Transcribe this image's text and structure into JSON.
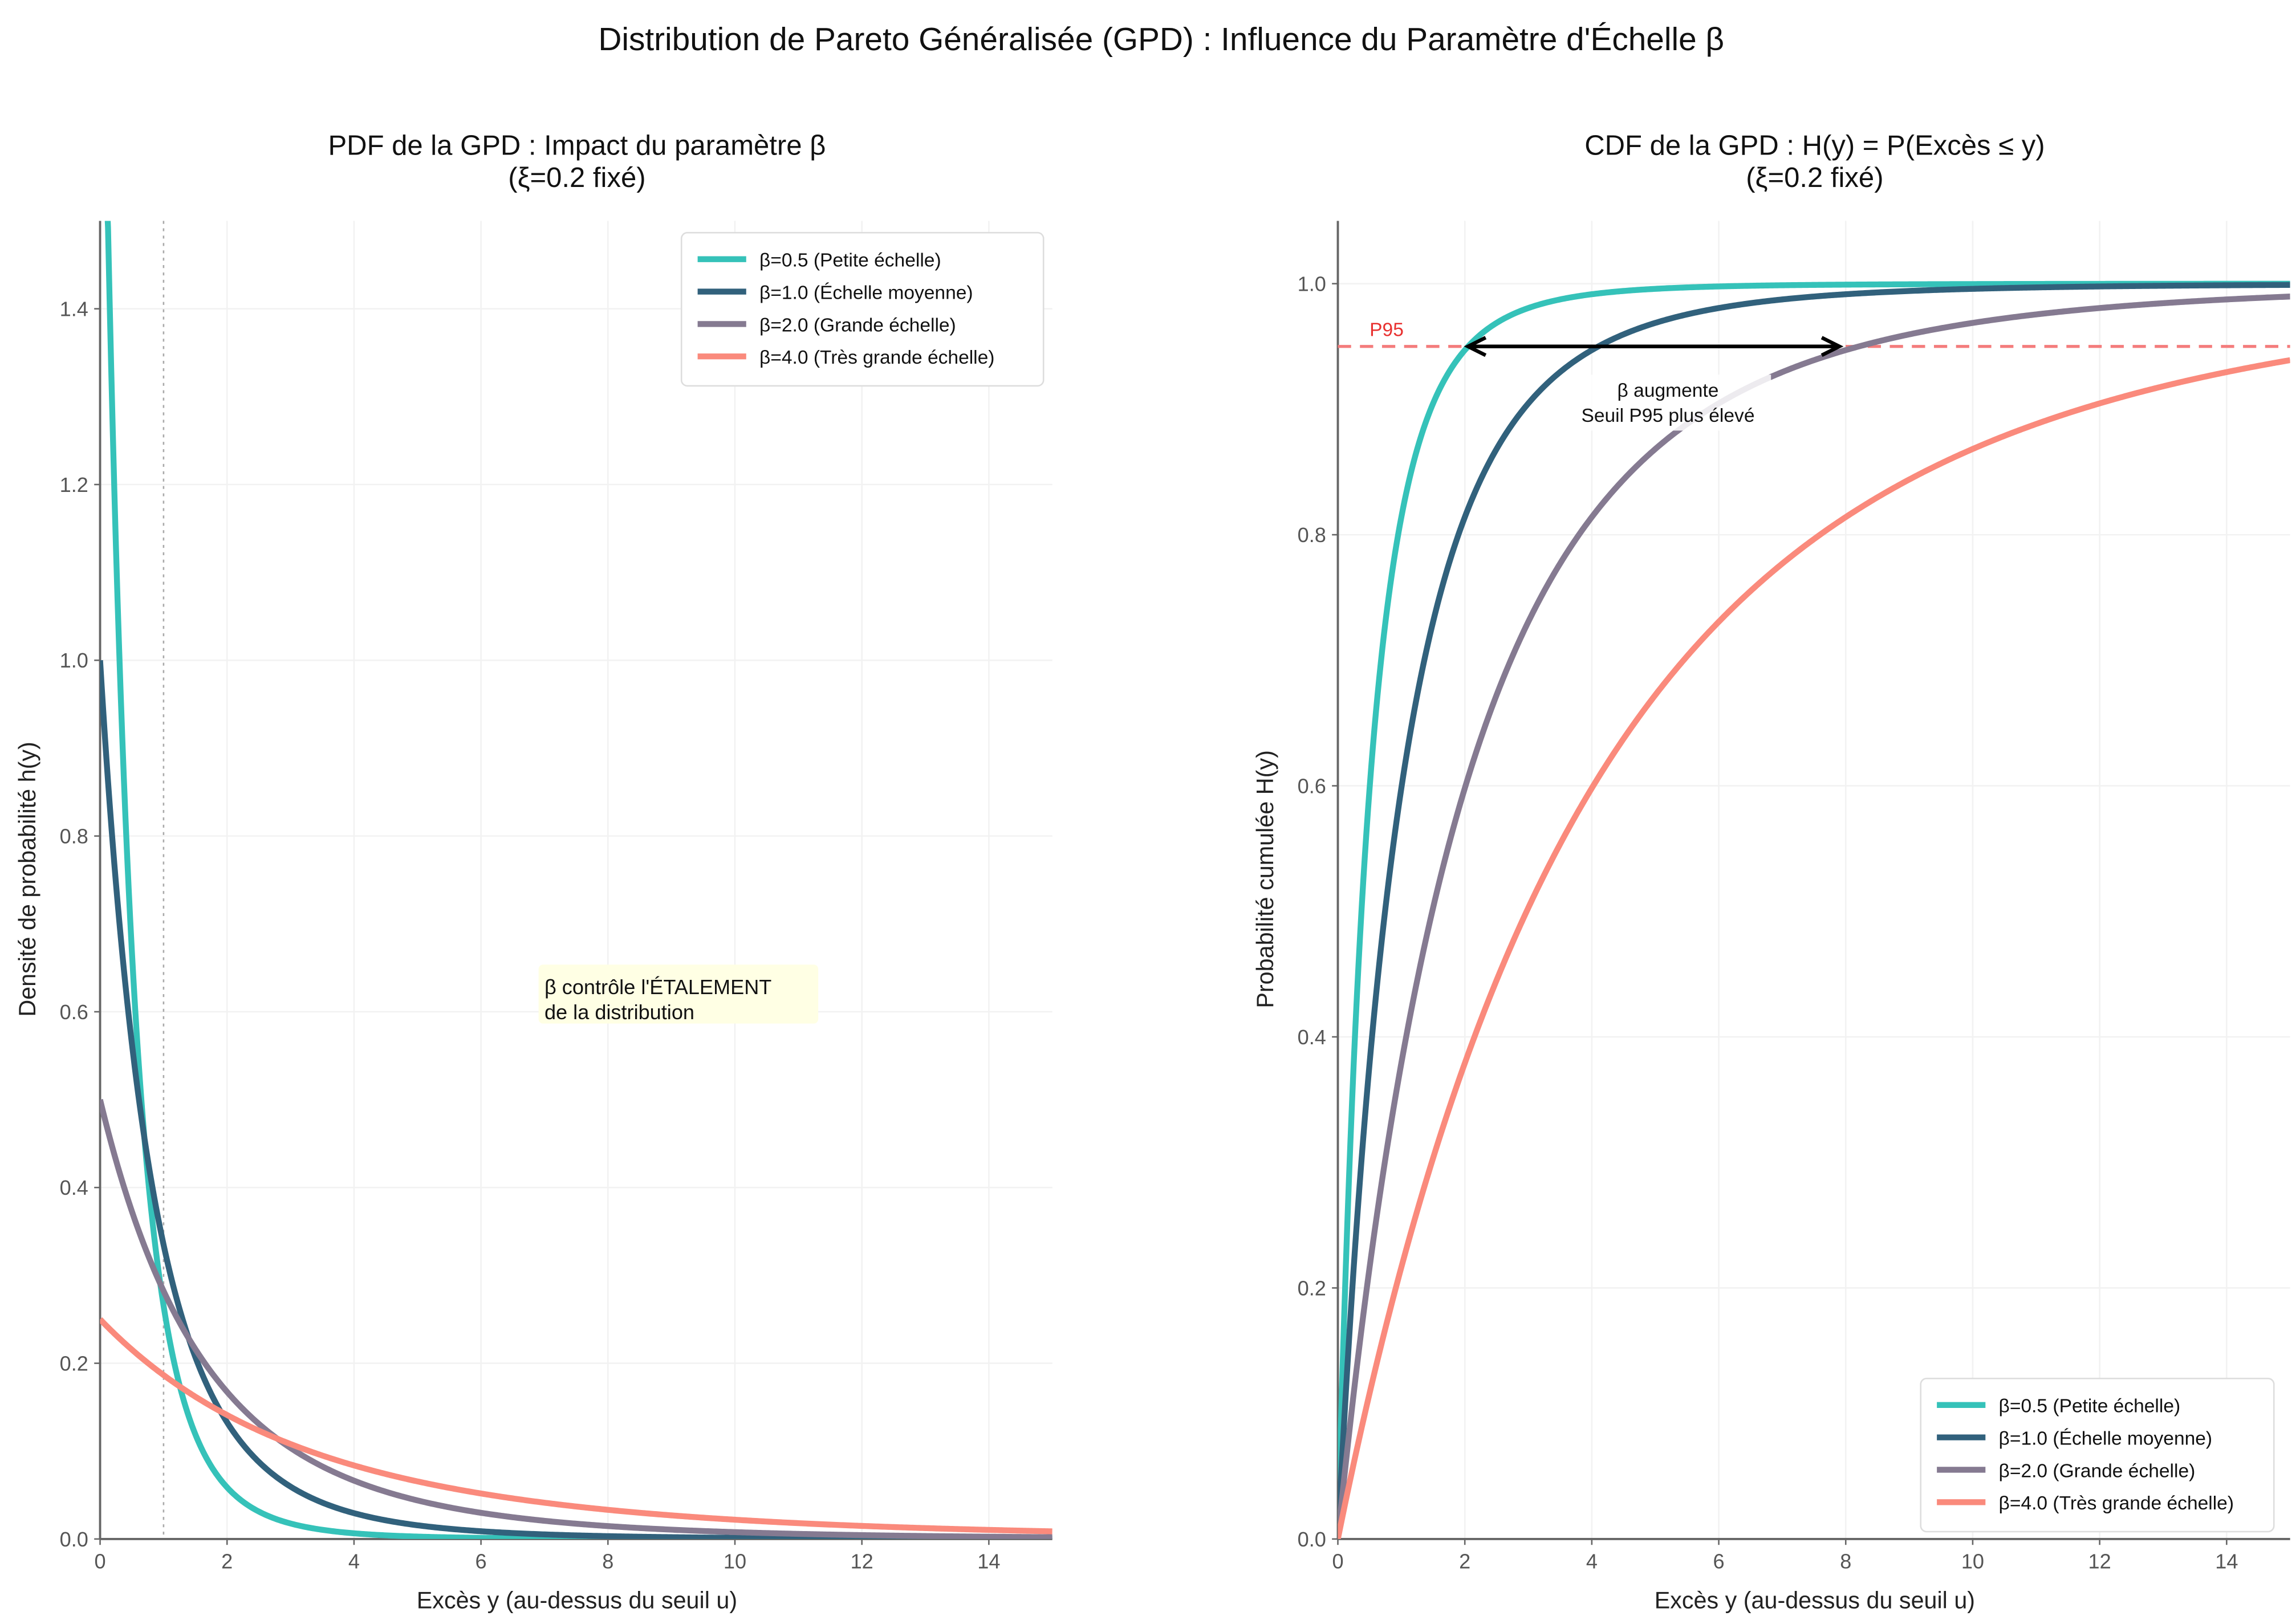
{
  "suptitle": "Distribution de Pareto Généralisée (GPD) : Influence du Paramètre d'Échelle β",
  "chart_data": [
    {
      "type": "line",
      "title": "PDF de la GPD : Impact du paramètre β",
      "subtitle": "(ξ=0.2 fixé)",
      "xlabel": "Excès y (au-dessus du seuil u)",
      "ylabel": "Densité de probabilité h(y)",
      "xlim": [
        0,
        15
      ],
      "ylim": [
        0,
        1.5
      ],
      "xticks": [
        "0",
        "2",
        "4",
        "6",
        "8",
        "10",
        "12",
        "14"
      ],
      "yticks": [
        "0.0",
        "0.2",
        "0.4",
        "0.6",
        "0.8",
        "1.0",
        "1.2",
        "1.4"
      ],
      "function": "h(y) = (1/β)(1+ξy/β)^(-1/ξ-1)",
      "xi": 0.2,
      "grid": true,
      "legend": "top-right",
      "reference_line_x": 1,
      "annotation": {
        "line1": "β contrôle l'ÉTALEMENT",
        "line2": "de la distribution",
        "x": 7,
        "y": 0.6
      },
      "series": [
        {
          "name": "β=0.5 (Petite échelle)",
          "beta": 0.5,
          "color": "#35c2b9"
        },
        {
          "name": "β=1.0 (Échelle moyenne)",
          "beta": 1.0,
          "color": "#31617c"
        },
        {
          "name": "β=2.0 (Grande échelle)",
          "beta": 2.0,
          "color": "#857a91"
        },
        {
          "name": "β=4.0 (Très grande échelle)",
          "beta": 4.0,
          "color": "#fa8a7c"
        }
      ]
    },
    {
      "type": "line",
      "title": "CDF de la GPD : H(y) = P(Excès ≤ y)",
      "subtitle": "(ξ=0.2 fixé)",
      "xlabel": "Excès y (au-dessus du seuil u)",
      "ylabel": "Probabilité cumulée H(y)",
      "xlim": [
        0,
        15
      ],
      "ylim": [
        0,
        1.05
      ],
      "xticks": [
        "0",
        "2",
        "4",
        "6",
        "8",
        "10",
        "12",
        "14"
      ],
      "yticks": [
        "0.0",
        "0.2",
        "0.4",
        "0.6",
        "0.8",
        "1.0"
      ],
      "function": "H(y) = 1 - (1+ξy/β)^(-1/ξ)",
      "xi": 0.2,
      "grid": true,
      "legend": "bottom-right",
      "p95": {
        "label": "P95",
        "value": 0.95,
        "color": "#e8302f"
      },
      "arrow": {
        "from_x": 2.05,
        "to_x": 7.9,
        "y": 0.95
      },
      "annotation": {
        "line1": "β augmente",
        "line2": "Seuil P95 plus élevé",
        "x": 5.2,
        "y": 0.89
      },
      "series": [
        {
          "name": "β=0.5 (Petite échelle)",
          "beta": 0.5,
          "color": "#35c2b9"
        },
        {
          "name": "β=1.0 (Échelle moyenne)",
          "beta": 1.0,
          "color": "#31617c"
        },
        {
          "name": "β=2.0 (Grande échelle)",
          "beta": 2.0,
          "color": "#857a91"
        },
        {
          "name": "β=4.0 (Très grande échelle)",
          "beta": 4.0,
          "color": "#fa8a7c"
        }
      ]
    }
  ]
}
